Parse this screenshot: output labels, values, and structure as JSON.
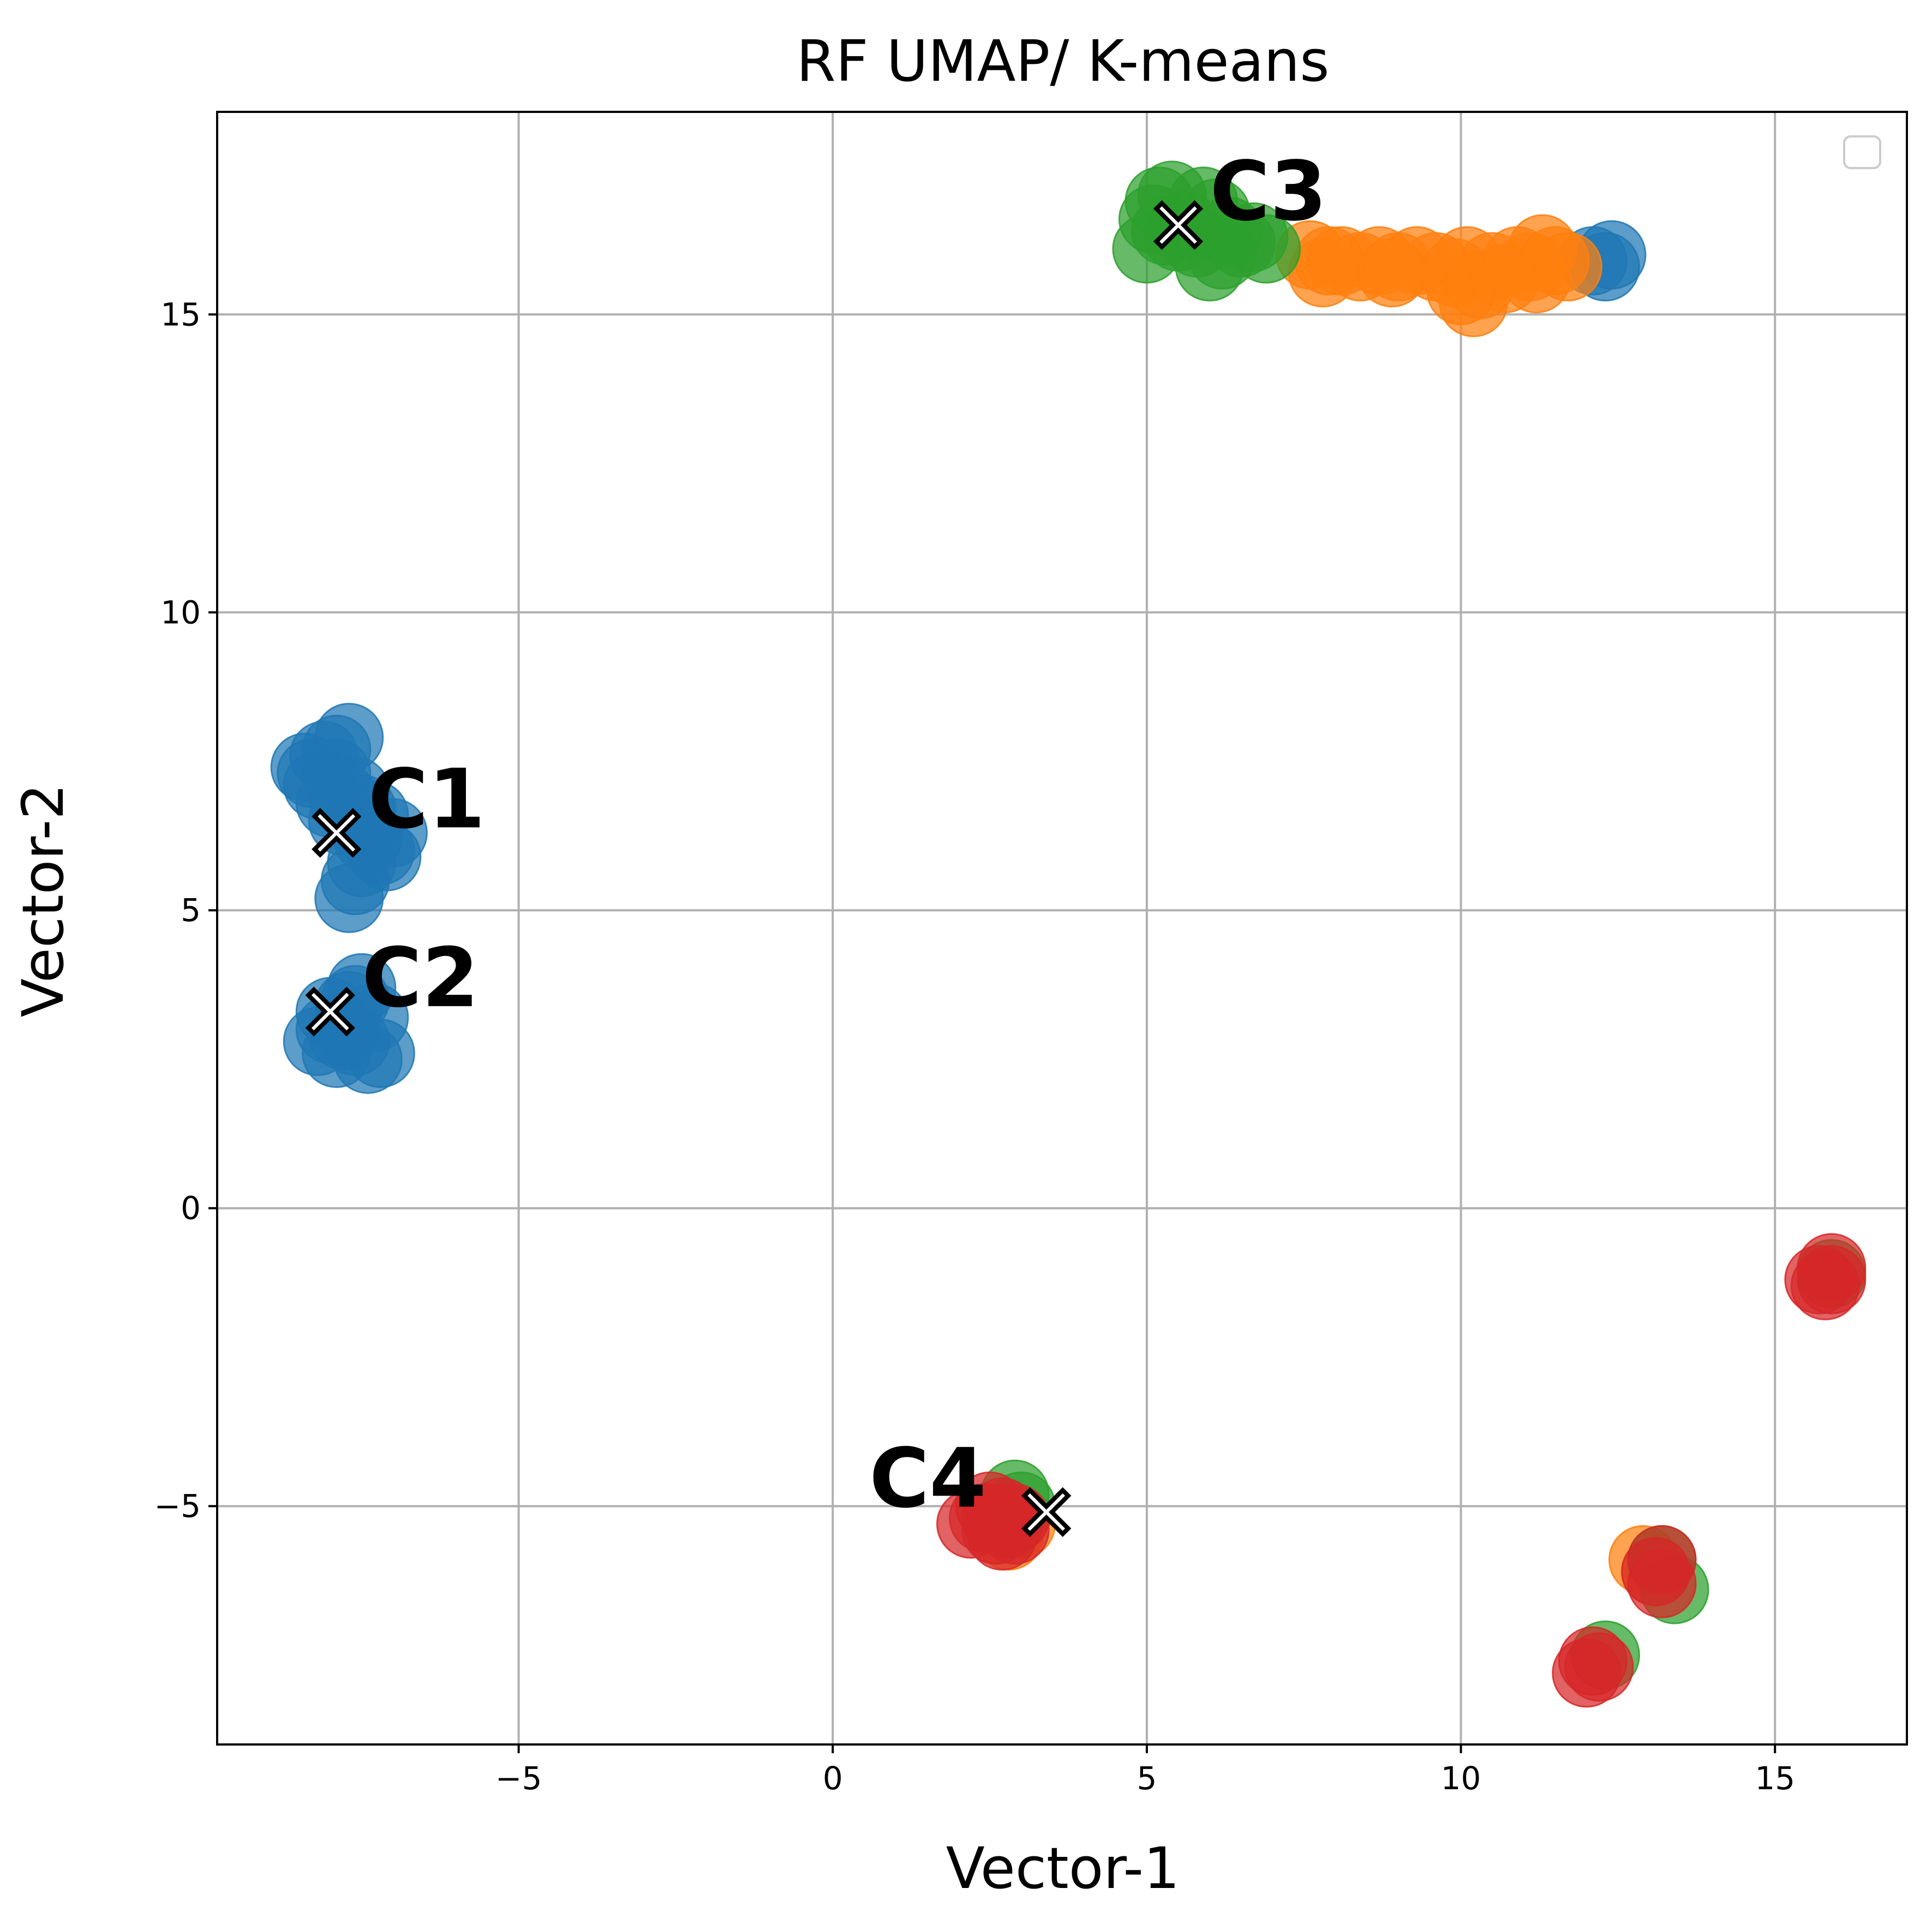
{
  "chart_data": {
    "type": "scatter",
    "title": "RF UMAP/ K-means",
    "xlabel": "Vector-1",
    "ylabel": "Vector-2",
    "xlim": [
      -9.8,
      17.1
    ],
    "ylim": [
      -9.0,
      18.4
    ],
    "xticks": [
      -5,
      0,
      5,
      10,
      15
    ],
    "yticks": [
      -5,
      0,
      5,
      10,
      15
    ],
    "xtick_labels": [
      "−5",
      "0",
      "5",
      "10",
      "15"
    ],
    "ytick_labels": [
      "−5",
      "0",
      "5",
      "10",
      "15"
    ],
    "grid": true,
    "legend": {
      "placement": "upper-right",
      "entries": []
    },
    "series": [
      {
        "color": "#1f77b4",
        "points": [
          [
            -8.4,
            7.4
          ],
          [
            -8.1,
            7.6
          ],
          [
            -7.7,
            7.9
          ],
          [
            -8.2,
            7.1
          ],
          [
            -7.9,
            7.3
          ],
          [
            -7.6,
            7.0
          ],
          [
            -7.3,
            6.6
          ],
          [
            -7.0,
            6.3
          ],
          [
            -7.2,
            6.0
          ],
          [
            -7.5,
            5.8
          ],
          [
            -7.6,
            5.5
          ],
          [
            -7.7,
            5.2
          ],
          [
            -8.0,
            6.8
          ],
          [
            -7.8,
            6.5
          ],
          [
            -7.4,
            6.2
          ],
          [
            -7.1,
            5.9
          ],
          [
            -8.3,
            7.3
          ],
          [
            -7.9,
            7.7
          ],
          [
            -7.8,
            6.9
          ],
          [
            -7.5,
            6.7
          ],
          [
            -8.0,
            3.0
          ],
          [
            -7.7,
            3.4
          ],
          [
            -7.5,
            3.7
          ],
          [
            -7.3,
            3.2
          ],
          [
            -7.6,
            2.8
          ],
          [
            -7.9,
            2.6
          ],
          [
            -8.2,
            2.8
          ],
          [
            -7.4,
            2.5
          ],
          [
            -7.2,
            2.6
          ],
          [
            -7.6,
            3.5
          ],
          [
            -8.0,
            3.3
          ],
          [
            -7.8,
            2.9
          ],
          [
            12.1,
            15.9
          ],
          [
            12.4,
            16.0
          ],
          [
            12.3,
            15.8
          ]
        ]
      },
      {
        "color": "#ff7f0e",
        "points": [
          [
            7.6,
            16.0
          ],
          [
            7.8,
            15.7
          ],
          [
            8.1,
            15.9
          ],
          [
            8.4,
            15.8
          ],
          [
            8.7,
            15.9
          ],
          [
            9.0,
            15.8
          ],
          [
            9.3,
            15.9
          ],
          [
            9.6,
            15.8
          ],
          [
            9.9,
            15.7
          ],
          [
            10.1,
            15.9
          ],
          [
            10.2,
            15.2
          ],
          [
            10.3,
            15.5
          ],
          [
            10.5,
            15.8
          ],
          [
            10.7,
            15.6
          ],
          [
            10.9,
            15.9
          ],
          [
            11.1,
            15.8
          ],
          [
            11.3,
            16.1
          ],
          [
            11.5,
            15.9
          ],
          [
            11.7,
            15.8
          ],
          [
            11.2,
            15.6
          ],
          [
            10.0,
            15.4
          ],
          [
            8.9,
            15.7
          ],
          [
            7.9,
            15.9
          ],
          [
            2.8,
            -5.5
          ],
          [
            3.0,
            -5.3
          ],
          [
            12.9,
            -5.9
          ],
          [
            13.1,
            -6.1
          ]
        ]
      },
      {
        "color": "#2ca02c",
        "points": [
          [
            5.0,
            16.1
          ],
          [
            5.1,
            16.6
          ],
          [
            5.2,
            16.9
          ],
          [
            5.4,
            17.0
          ],
          [
            5.6,
            16.5
          ],
          [
            5.8,
            16.2
          ],
          [
            6.0,
            15.8
          ],
          [
            6.1,
            16.7
          ],
          [
            6.3,
            16.4
          ],
          [
            6.5,
            16.2
          ],
          [
            6.7,
            16.3
          ],
          [
            6.9,
            16.1
          ],
          [
            5.5,
            16.3
          ],
          [
            5.9,
            16.9
          ],
          [
            5.3,
            16.4
          ],
          [
            6.2,
            16.0
          ],
          [
            2.9,
            -4.8
          ],
          [
            3.0,
            -5.0
          ],
          [
            13.2,
            -5.9
          ],
          [
            13.4,
            -6.4
          ],
          [
            12.3,
            -7.5
          ],
          [
            15.9,
            -1.1
          ]
        ]
      },
      {
        "color": "#d62728",
        "points": [
          [
            2.2,
            -5.3
          ],
          [
            2.4,
            -5.2
          ],
          [
            2.6,
            -5.4
          ],
          [
            2.7,
            -5.1
          ],
          [
            2.8,
            -5.3
          ],
          [
            2.9,
            -5.2
          ],
          [
            2.5,
            -5.0
          ],
          [
            2.7,
            -5.5
          ],
          [
            2.9,
            -5.4
          ],
          [
            2.6,
            -5.2
          ],
          [
            13.2,
            -5.9
          ],
          [
            13.2,
            -6.3
          ],
          [
            13.1,
            -6.1
          ],
          [
            12.0,
            -7.8
          ],
          [
            12.1,
            -7.6
          ],
          [
            12.2,
            -7.7
          ],
          [
            15.7,
            -1.2
          ],
          [
            15.9,
            -1.0
          ],
          [
            15.8,
            -1.3
          ],
          [
            15.9,
            -1.2
          ]
        ]
      }
    ],
    "centroids": [
      {
        "label": "C1",
        "x": -7.9,
        "y": 6.3,
        "label_pos": "right"
      },
      {
        "label": "C2",
        "x": -8.0,
        "y": 3.3,
        "label_pos": "right"
      },
      {
        "label": "C3",
        "x": 5.5,
        "y": 16.5,
        "label_pos": "right"
      },
      {
        "label": "C4",
        "x": 3.4,
        "y": -5.1,
        "label_pos": "left"
      }
    ]
  }
}
